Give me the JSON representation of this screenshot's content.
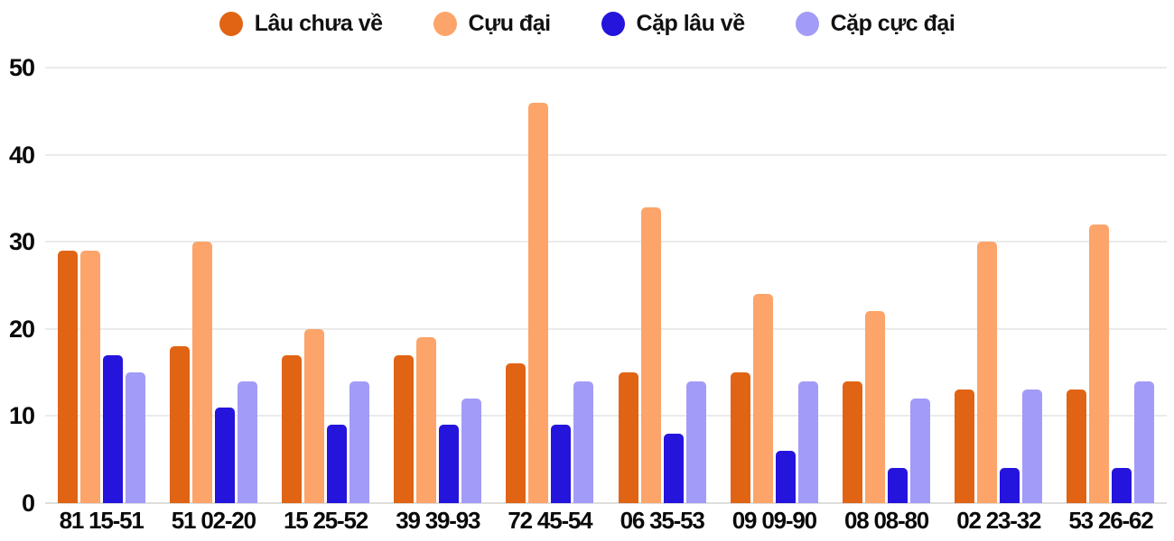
{
  "chart_data": {
    "type": "bar",
    "title": "",
    "xlabel": "",
    "ylabel": "",
    "categories": [
      "81 15-51",
      "51 02-20",
      "15 25-52",
      "39 39-93",
      "72 45-54",
      "06 35-53",
      "09 09-90",
      "08 08-80",
      "02 23-32",
      "53 26-62"
    ],
    "series": [
      {
        "name": "Lâu chưa về",
        "color": "#E06414",
        "values": [
          29,
          18,
          17,
          17,
          16,
          15,
          15,
          14,
          13,
          13
        ]
      },
      {
        "name": "Cựu đại",
        "color": "#FCA469",
        "values": [
          29,
          30,
          20,
          19,
          46,
          34,
          24,
          22,
          30,
          32
        ]
      },
      {
        "name": "Cặp lâu về",
        "color": "#2414DC",
        "values": [
          17,
          11,
          9,
          9,
          9,
          8,
          6,
          4,
          4,
          4
        ]
      },
      {
        "name": "Cặp cực đại",
        "color": "#A29BF7",
        "values": [
          15,
          14,
          14,
          12,
          14,
          14,
          14,
          12,
          13,
          14
        ]
      }
    ],
    "ylim": [
      0,
      50
    ],
    "yticks": [
      0,
      10,
      20,
      30,
      40,
      50
    ],
    "grid": true,
    "legend_position": "top",
    "colors": {
      "text": "#0a0a0a",
      "gridline": "#ebebeb",
      "background": "#ffffff"
    }
  }
}
